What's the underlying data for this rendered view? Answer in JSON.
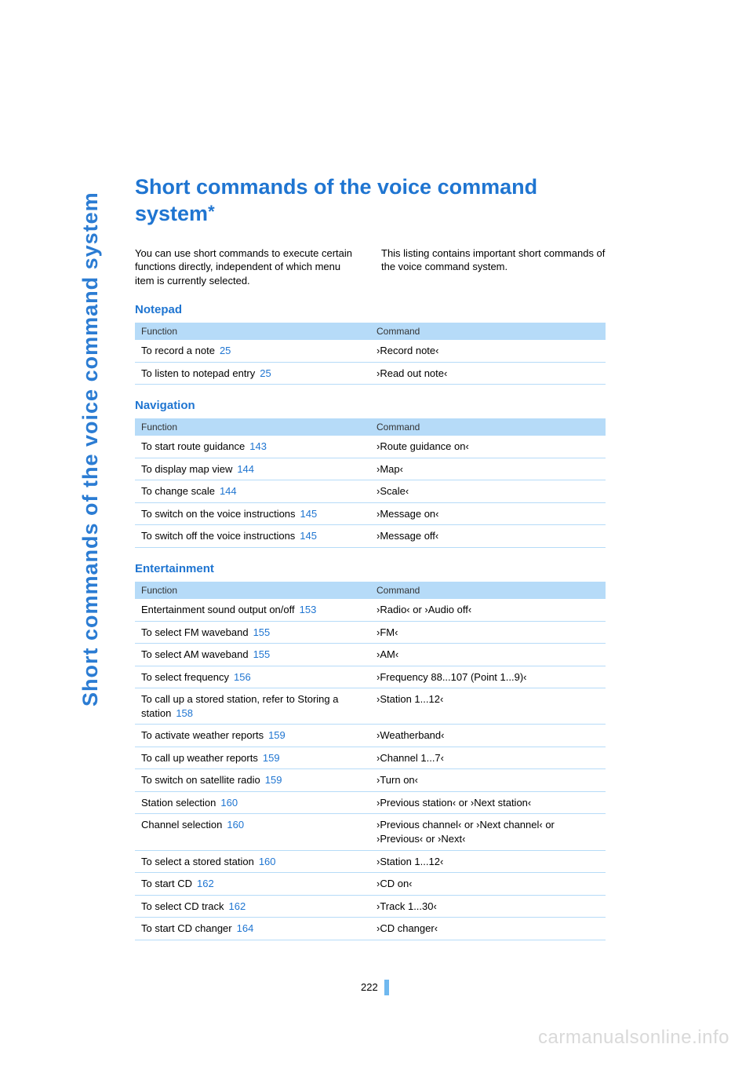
{
  "sidebar": "Short commands of the voice command system",
  "title": "Short commands of the voice command system",
  "intro": {
    "left": "You can use short commands to execute certain functions directly, independent of which menu item is currently selected.",
    "right": "This listing contains important short commands of the voice command system."
  },
  "sections": [
    {
      "heading": "Notepad",
      "header_func": "Function",
      "header_cmd": "Command",
      "rows": [
        {
          "func": "To record a note",
          "page": "25",
          "cmd": "›Record note‹"
        },
        {
          "func": "To listen to notepad entry",
          "page": "25",
          "cmd": "›Read out note‹"
        }
      ]
    },
    {
      "heading": "Navigation",
      "header_func": "Function",
      "header_cmd": "Command",
      "rows": [
        {
          "func": "To start route guidance",
          "page": "143",
          "cmd": "›Route guidance on‹"
        },
        {
          "func": "To display map view",
          "page": "144",
          "cmd": "›Map‹"
        },
        {
          "func": "To change scale",
          "page": "144",
          "cmd": "›Scale‹"
        },
        {
          "func": "To switch on the voice instructions",
          "page": "145",
          "cmd": "›Message on‹"
        },
        {
          "func": "To switch off the voice instructions",
          "page": "145",
          "cmd": "›Message off‹"
        }
      ]
    },
    {
      "heading": "Entertainment",
      "header_func": "Function",
      "header_cmd": "Command",
      "rows": [
        {
          "func": "Entertainment sound output on/off",
          "page": "153",
          "cmd": "›Radio‹ or ›Audio off‹"
        },
        {
          "func": "To select FM waveband",
          "page": "155",
          "cmd": "›FM‹"
        },
        {
          "func": "To select AM waveband",
          "page": "155",
          "cmd": "›AM‹"
        },
        {
          "func": "To select frequency",
          "page": "156",
          "cmd": "›Frequency 88...107 (Point 1...9)‹"
        },
        {
          "func": "To call up a stored station, refer to Storing a station",
          "page": "158",
          "cmd": "›Station 1...12‹"
        },
        {
          "func": "To activate weather reports",
          "page": "159",
          "cmd": "›Weatherband‹"
        },
        {
          "func": "To call up weather reports",
          "page": "159",
          "cmd": "›Channel 1...7‹"
        },
        {
          "func": "To switch on satellite radio",
          "page": "159",
          "cmd": "›Turn on‹"
        },
        {
          "func": "Station selection",
          "page": "160",
          "cmd": "›Previous station‹ or ›Next station‹"
        },
        {
          "func": "Channel selection",
          "page": "160",
          "cmd": "›Previous channel‹ or ›Next channel‹ or ›Previous‹ or ›Next‹"
        },
        {
          "func": "To select a stored station",
          "page": "160",
          "cmd": "›Station 1...12‹"
        },
        {
          "func": "To start CD",
          "page": "162",
          "cmd": "›CD on‹"
        },
        {
          "func": "To select CD track",
          "page": "162",
          "cmd": "›Track 1...30‹"
        },
        {
          "func": "To start CD changer",
          "page": "164",
          "cmd": "›CD changer‹"
        }
      ]
    }
  ],
  "page_number": "222",
  "watermark": "carmanualsonline.info",
  "colors": {
    "accent": "#1f75d1",
    "header_bg": "#b6dbf8",
    "watermark": "#d9d9d9"
  }
}
